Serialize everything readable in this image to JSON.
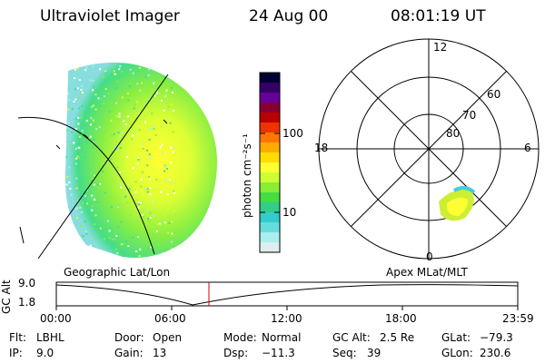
{
  "header": {
    "title": "Ultraviolet Imager",
    "date": "24 Aug 00",
    "time": "08:01:19 UT"
  },
  "colorbar": {
    "unit_label": "photon cm⁻²s⁻¹",
    "ticks": [
      "100",
      "10"
    ],
    "colors": [
      "#000033",
      "#330066",
      "#660099",
      "#880033",
      "#bb0000",
      "#ee3300",
      "#ff7700",
      "#ffaa00",
      "#ffdd00",
      "#ffff33",
      "#ccff33",
      "#88ee33",
      "#44dd44",
      "#33cc88",
      "#33cccc",
      "#66dddd",
      "#aaeeee",
      "#ddeeee"
    ]
  },
  "polar": {
    "mlt_labels": {
      "top": "12",
      "left": "18",
      "right": "6",
      "bottom": "0"
    },
    "lat_labels": [
      "60",
      "70",
      "80"
    ]
  },
  "panel_labels": {
    "left": "Geographic Lat/Lon",
    "right": "Apex MLat/MLT"
  },
  "altitude_plot": {
    "ylabel": "GC Alt",
    "y_ticks": [
      "9.0",
      "1.8"
    ],
    "x_ticks": [
      "00:00",
      "06:00",
      "12:00",
      "18:00",
      "23:59"
    ],
    "cursor_color": "#cc0000"
  },
  "info": {
    "flt_label": "Flt:",
    "flt_value": "LBHL",
    "ip_label": "IP:",
    "ip_value": "9.0",
    "door_label": "Door:",
    "door_value": "Open",
    "gain_label": "Gain:",
    "gain_value": "13",
    "mode_label": "Mode:",
    "mode_value": "Normal",
    "dsp_label": "Dsp:",
    "dsp_value": "−11.3",
    "gcalt_label": "GC Alt:",
    "gcalt_value": "2.5 Re",
    "seq_label": "Seq:",
    "seq_value": "39",
    "glat_label": "GLat:",
    "glat_value": "−79.3",
    "glon_label": "GLon:",
    "glon_value": "230.6"
  }
}
